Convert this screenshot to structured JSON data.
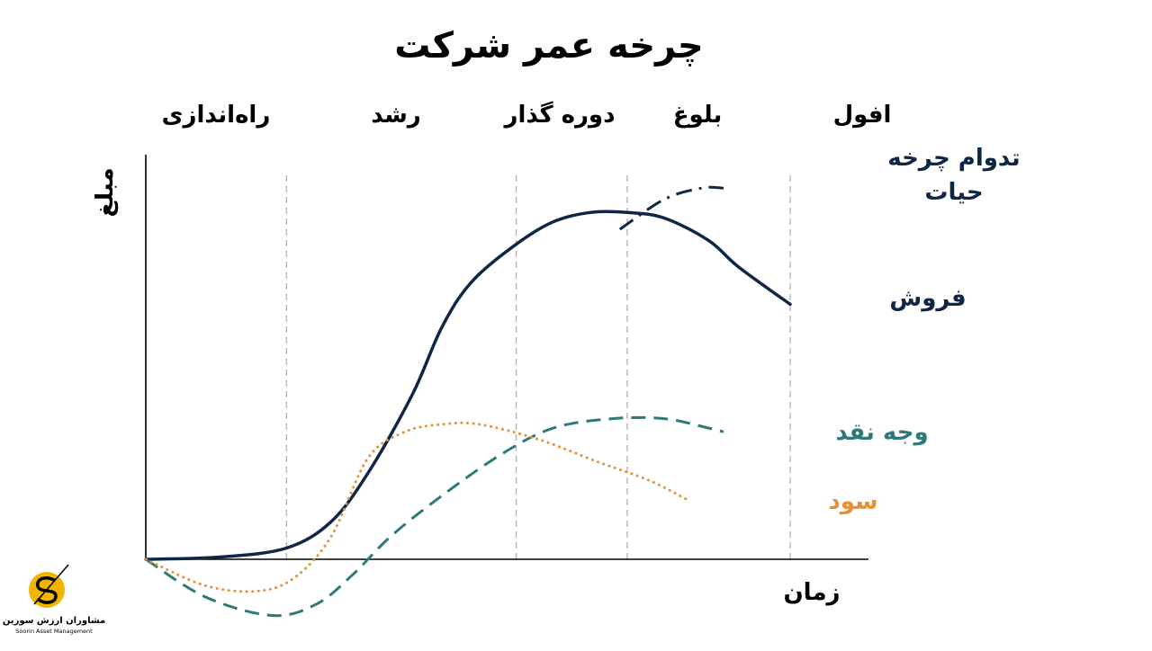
{
  "chart_data": {
    "type": "line",
    "title": "چرخه عمر شرکت",
    "xlabel": "زمان",
    "ylabel": "مبلغ",
    "xlim": [
      0,
      100
    ],
    "ylim": [
      -16,
      100
    ],
    "grid": false,
    "stages": [
      {
        "label": "راه‌اندازی",
        "start": 0,
        "end": 19
      },
      {
        "label": "رشد",
        "start": 19,
        "end": 50
      },
      {
        "label": "دوره گذار",
        "start": 50,
        "end": 65
      },
      {
        "label": "بلوغ",
        "start": 65,
        "end": 87
      },
      {
        "label": "افول",
        "start": 87,
        "end": 100
      }
    ],
    "stage_boundaries": [
      19,
      50,
      65,
      87
    ],
    "series": [
      {
        "name": "فروش",
        "color": "#0f2744",
        "style": "solid",
        "points": [
          [
            0,
            0
          ],
          [
            10,
            0.6
          ],
          [
            19,
            3
          ],
          [
            25,
            10
          ],
          [
            30,
            23
          ],
          [
            36,
            44
          ],
          [
            40,
            62
          ],
          [
            44,
            74
          ],
          [
            50,
            84
          ],
          [
            55,
            90
          ],
          [
            60,
            92.5
          ],
          [
            65,
            92.5
          ],
          [
            70,
            91
          ],
          [
            76,
            85
          ],
          [
            80,
            78
          ],
          [
            87,
            68
          ]
        ]
      },
      {
        "name": "تدوام چرخه حیات",
        "color": "#0f2744",
        "style": "dashdot",
        "points": [
          [
            64,
            88
          ],
          [
            70,
            96
          ],
          [
            75,
            99
          ],
          [
            78,
            99
          ]
        ]
      },
      {
        "name": "وجه نقد",
        "color": "#2e7a7a",
        "style": "dashed",
        "points": [
          [
            0,
            0
          ],
          [
            8,
            -10
          ],
          [
            17,
            -15
          ],
          [
            23,
            -12
          ],
          [
            28,
            -4
          ],
          [
            33,
            6
          ],
          [
            40,
            17
          ],
          [
            48,
            28
          ],
          [
            55,
            35
          ],
          [
            63,
            37.5
          ],
          [
            70,
            37.5
          ],
          [
            76,
            35
          ],
          [
            78,
            34
          ]
        ]
      },
      {
        "name": "سود",
        "color": "#e69138",
        "style": "dotted",
        "points": [
          [
            0,
            0
          ],
          [
            8,
            -7
          ],
          [
            15,
            -8.5
          ],
          [
            20,
            -5
          ],
          [
            25,
            6
          ],
          [
            30,
            27
          ],
          [
            35,
            34
          ],
          [
            40,
            36
          ],
          [
            45,
            36
          ],
          [
            53,
            32
          ],
          [
            61,
            26
          ],
          [
            68,
            21
          ],
          [
            73,
            16
          ]
        ]
      }
    ]
  },
  "logo": {
    "name_fa": "مشاوران ارزش سورین",
    "name_en": "Soorin Asset Management",
    "color": "#f2b400"
  }
}
